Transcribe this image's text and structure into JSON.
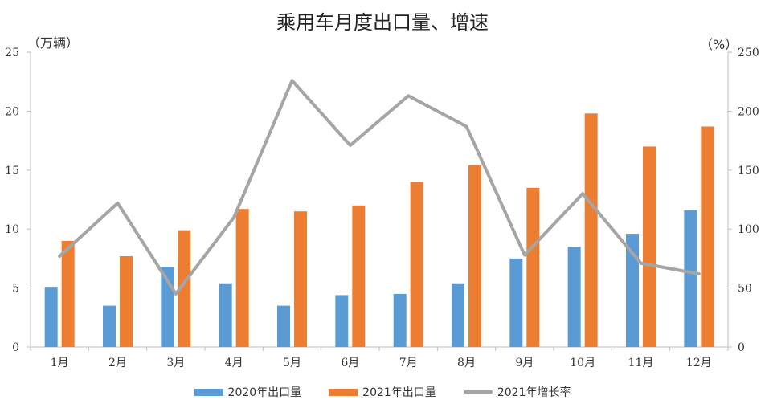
{
  "chart_data": {
    "type": "bar",
    "title": "乘用车月度出口量、增速",
    "y_unit_left": "（万辆）",
    "y_unit_right": "（%）",
    "categories": [
      "1月",
      "2月",
      "3月",
      "4月",
      "5月",
      "6月",
      "7月",
      "8月",
      "9月",
      "10月",
      "11月",
      "12月"
    ],
    "series": [
      {
        "name": "2020年出口量",
        "kind": "bar",
        "axis": "left",
        "color": "#5b9bd5",
        "values": [
          5.1,
          3.5,
          6.8,
          5.4,
          3.5,
          4.4,
          4.5,
          5.4,
          7.5,
          8.5,
          9.6,
          11.6
        ]
      },
      {
        "name": "2021年出口量",
        "kind": "bar",
        "axis": "left",
        "color": "#ed7d31",
        "values": [
          9.0,
          7.7,
          9.9,
          11.7,
          11.5,
          12.0,
          14.0,
          15.4,
          13.5,
          19.8,
          17.0,
          18.7
        ]
      },
      {
        "name": "2021年增长率",
        "kind": "line",
        "axis": "right",
        "color": "#a5a5a5",
        "values": [
          77,
          122,
          45,
          110,
          226,
          171,
          213,
          187,
          78,
          130,
          71,
          62
        ]
      }
    ],
    "ylim_left": [
      0,
      25
    ],
    "yticks_left": [
      "0",
      "5",
      "10",
      "15",
      "20",
      "25"
    ],
    "ylim_right": [
      0,
      250
    ],
    "yticks_right": [
      "0",
      "50",
      "100",
      "150",
      "200",
      "250"
    ],
    "grid": false,
    "legend_position": "bottom"
  }
}
